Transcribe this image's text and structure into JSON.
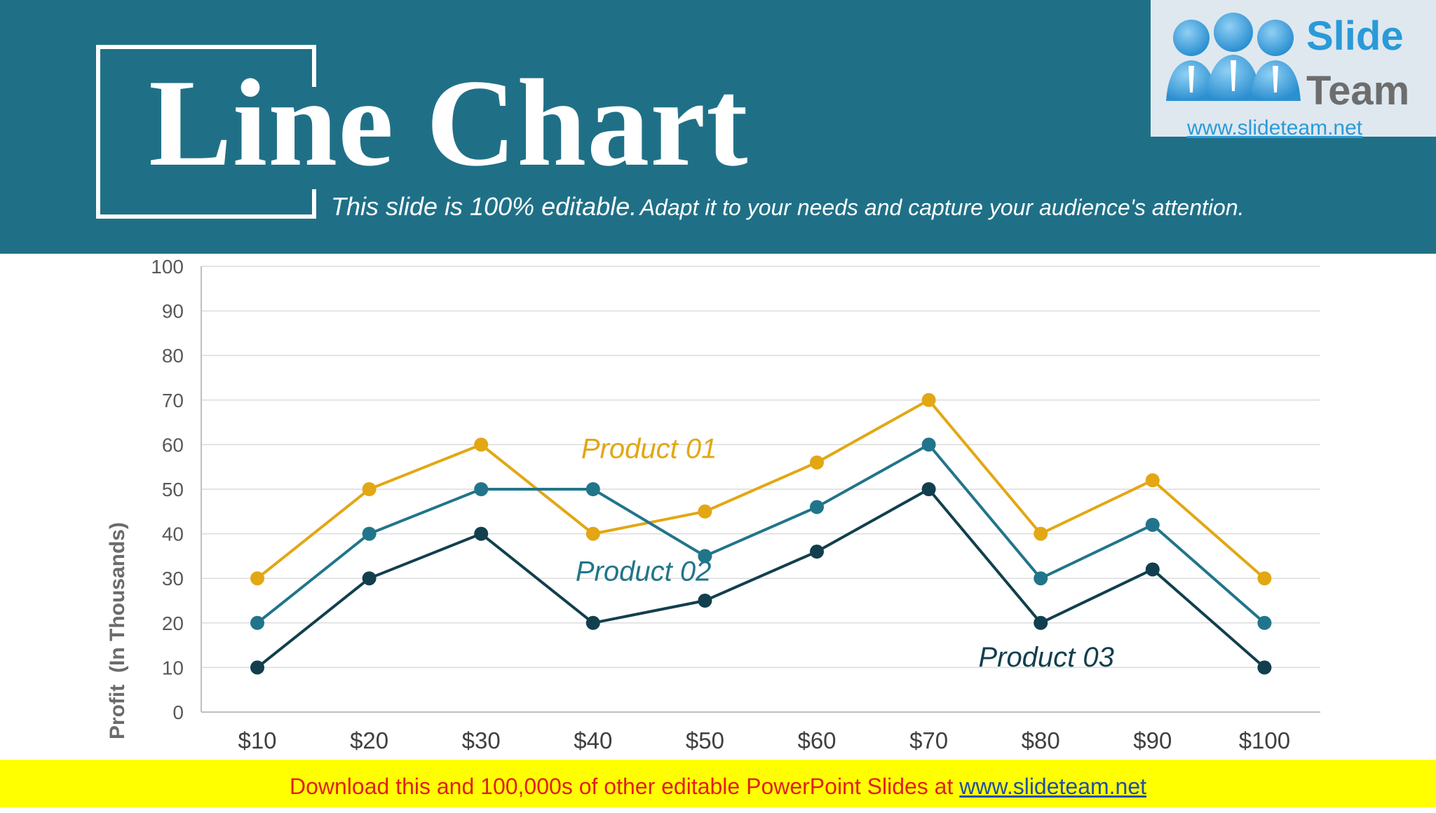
{
  "header": {
    "title": "Line Chart",
    "subtitle_part1": "This slide is 100% editable.",
    "subtitle_part2": "Adapt it to your needs and capture your audience's attention.",
    "background_color": "#1f7087"
  },
  "logo": {
    "brand_line1": "Slide",
    "brand_line2": "Team",
    "url": "www.slideteam.net",
    "icon": "three-people-icon"
  },
  "footer": {
    "text": "Download this and 100,000s of other editable PowerPoint Slides at",
    "link": "www.slideteam.net",
    "background_color": "#ffff00"
  },
  "chart_data": {
    "type": "line",
    "title": "",
    "xlabel": "",
    "ylabel": "Profit  (In Thousands)",
    "categories": [
      "$10",
      "$20",
      "$30",
      "$40",
      "$50",
      "$60",
      "$70",
      "$80",
      "$90",
      "$100"
    ],
    "ylim": [
      0,
      100
    ],
    "yticks": [
      0,
      10,
      20,
      30,
      40,
      50,
      60,
      70,
      80,
      90,
      100
    ],
    "grid": true,
    "legend": "inline labels",
    "series": [
      {
        "name": "Product 01",
        "color": "#e2a713",
        "values": [
          30,
          50,
          60,
          40,
          45,
          56,
          70,
          40,
          52,
          30
        ]
      },
      {
        "name": "Product 02",
        "color": "#21758a",
        "values": [
          20,
          40,
          50,
          50,
          35,
          46,
          60,
          30,
          42,
          20
        ]
      },
      {
        "name": "Product 03",
        "color": "#123f4e",
        "values": [
          10,
          30,
          40,
          20,
          25,
          36,
          50,
          20,
          32,
          10
        ]
      }
    ]
  }
}
